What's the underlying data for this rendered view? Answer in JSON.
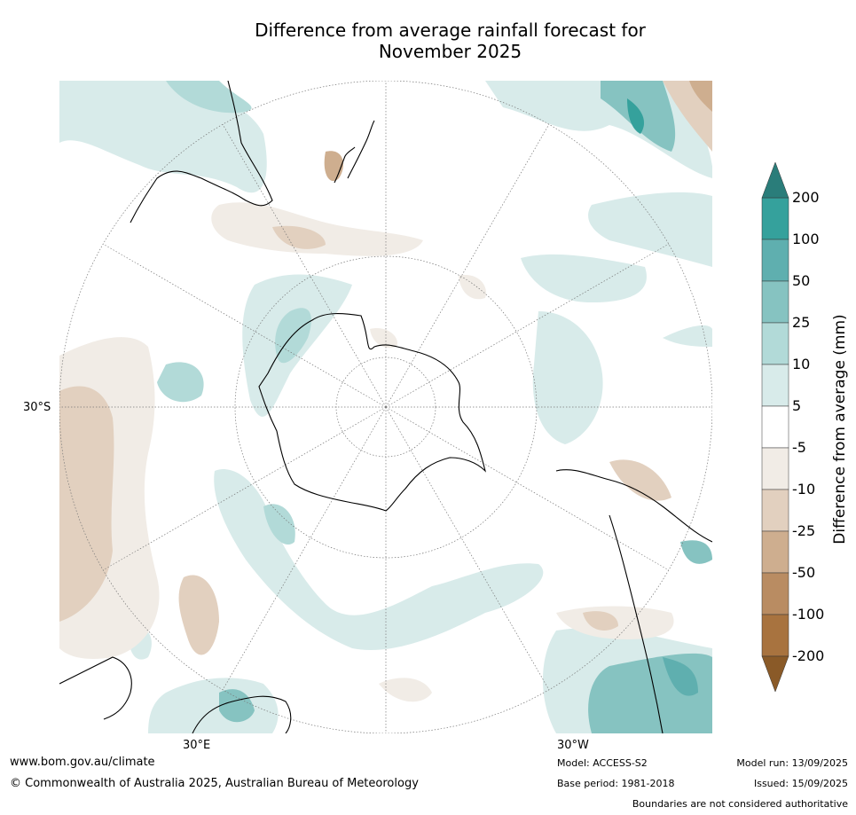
{
  "title": {
    "line1": "Difference from average rainfall forecast for",
    "line2": "November 2025"
  },
  "map": {
    "projection": "south polar stereographic",
    "graticule_labels": {
      "lat": "30°S",
      "lon_east": "30°E",
      "lon_west": "30°W"
    }
  },
  "colorbar": {
    "label": "Difference from average (mm)",
    "ticks": [
      "200",
      "100",
      "50",
      "25",
      "10",
      "5",
      "-5",
      "-10",
      "-25",
      "-50",
      "-100",
      "-200"
    ],
    "colors": [
      "#2a7d7a",
      "#35a19c",
      "#5fafaf",
      "#86c3c1",
      "#b2dad8",
      "#d8ebea",
      "#ffffff",
      "#f1ece6",
      "#e2d0bf",
      "#ceae8f",
      "#b98c62",
      "#a8733f",
      "#8a5a28"
    ]
  },
  "footer": {
    "website": "www.bom.gov.au/climate",
    "copyright": "© Commonwealth of Australia 2025, Australian Bureau of Meteorology",
    "model": "Model: ACCESS-S2",
    "base_period": "Base period: 1981-2018",
    "model_run": "Model run: 13/09/2025",
    "issued": "Issued: 15/09/2025",
    "disclaimer": "Boundaries are not considered authoritative"
  }
}
